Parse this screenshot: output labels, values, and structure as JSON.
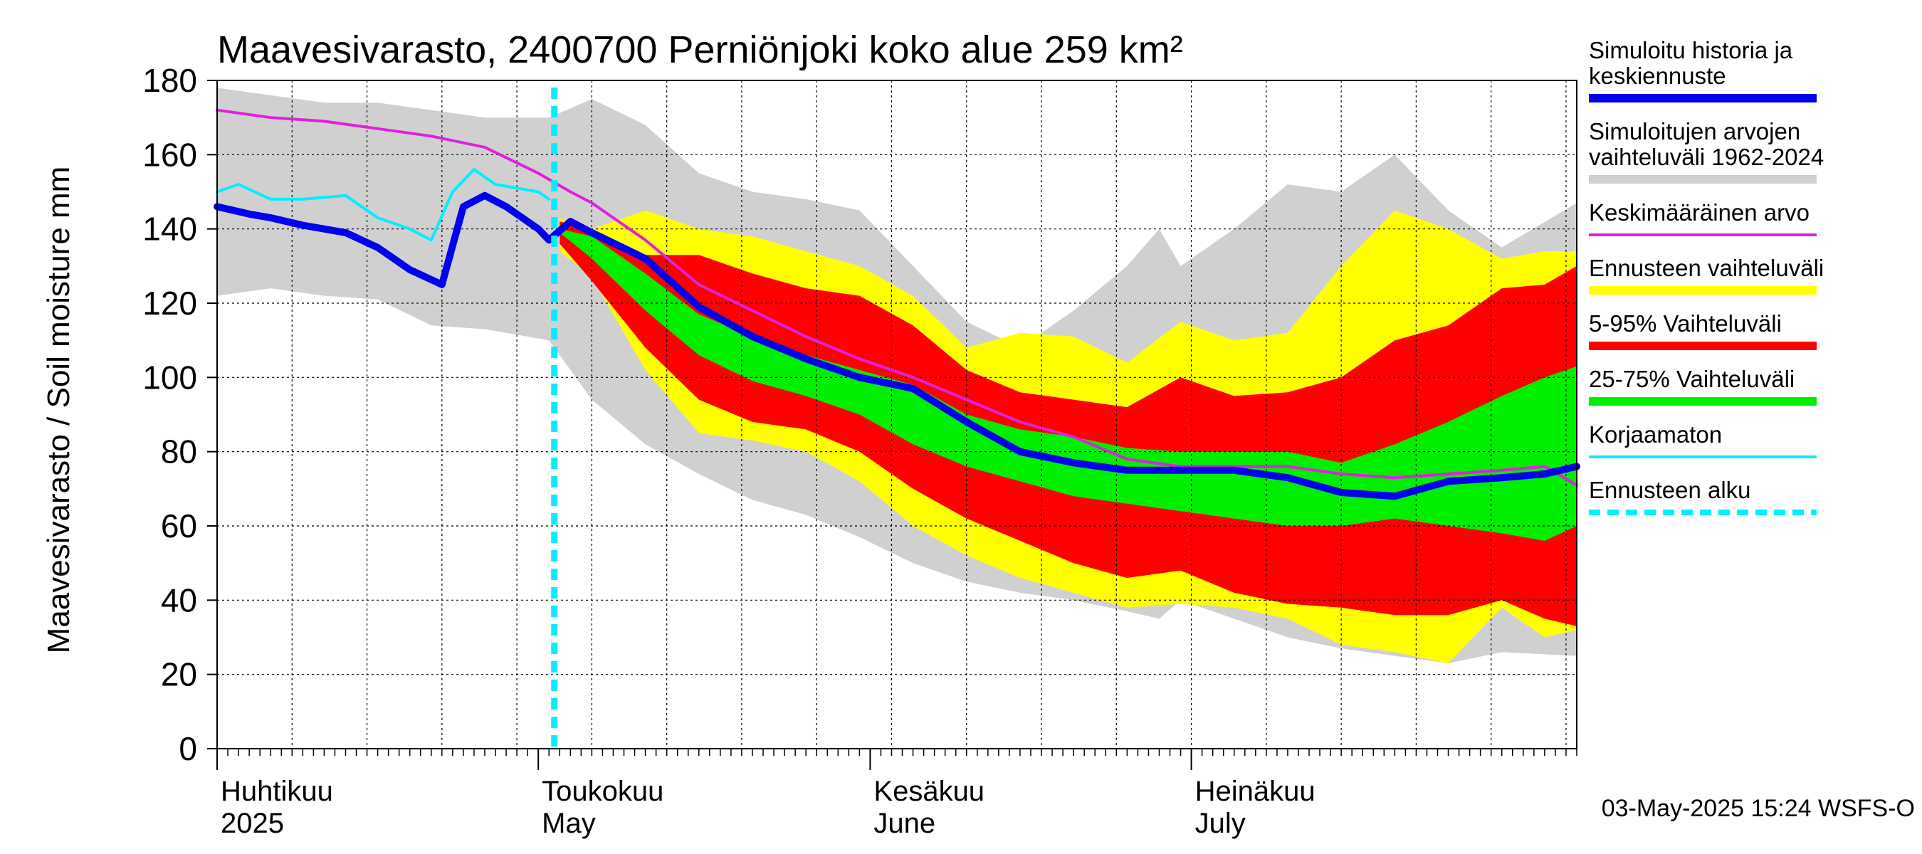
{
  "chart_data": {
    "type": "area",
    "title": "Maavesivarasto, 2400700 Perniönjoki koko alue 259 km²",
    "ylabel": "Maavesivarasto / Soil moisture   mm",
    "ylim": [
      0,
      180
    ],
    "yticks": [
      "0",
      "20",
      "40",
      "60",
      "80",
      "100",
      "120",
      "140",
      "160",
      "180"
    ],
    "x_range_days": [
      0,
      127
    ],
    "x_note": "x = days since 1 Apr 2025",
    "months": [
      {
        "fi": "Huhtikuu",
        "en": "2025",
        "day": 0
      },
      {
        "fi": "Toukokuu",
        "en": "May",
        "day": 30
      },
      {
        "fi": "Kesäkuu",
        "en": "June",
        "day": 61
      },
      {
        "fi": "Heinäkuu",
        "en": "July",
        "day": 91
      }
    ],
    "forecast_start_day": 31.5,
    "timestamp": "03-May-2025 15:24 WSFS-O",
    "legend": [
      {
        "label1": "Simuloitu historia ja",
        "label2": "keskiennuste",
        "color": "#0000ee",
        "style": "thick"
      },
      {
        "label1": "Simuloitujen arvojen",
        "label2": "vaihteluväli 1962-2024",
        "color": "#d0d0d0",
        "style": "thick"
      },
      {
        "label1": "Keskimääräinen arvo",
        "label2": "",
        "color": "#dd22dd",
        "style": "line"
      },
      {
        "label1": "Ennusteen vaihteluväli",
        "label2": "",
        "color": "#ffff00",
        "style": "thick"
      },
      {
        "label1": "5-95% Vaihteluväli",
        "label2": "",
        "color": "#ff0000",
        "style": "thick"
      },
      {
        "label1": "25-75% Vaihteluväli",
        "label2": "",
        "color": "#00ee00",
        "style": "thick"
      },
      {
        "label1": "Korjaamaton",
        "label2": "",
        "color": "#00eeff",
        "style": "line"
      },
      {
        "label1": "Ennusteen alku",
        "label2": "",
        "color": "#00eeff",
        "style": "dashed"
      }
    ],
    "bands": {
      "hist_range": {
        "color": "#d0d0d0",
        "x": [
          0,
          5,
          10,
          15,
          20,
          25,
          31,
          35,
          40,
          45,
          50,
          55,
          60,
          65,
          70,
          75,
          80,
          85,
          88,
          90,
          95,
          100,
          105,
          110,
          115,
          120,
          127
        ],
        "upper": [
          178,
          176,
          174,
          174,
          172,
          170,
          170,
          175,
          168,
          155,
          150,
          148,
          145,
          130,
          115,
          108,
          118,
          130,
          140,
          130,
          140,
          152,
          150,
          160,
          145,
          135,
          147
        ],
        "lower": [
          122,
          124,
          122,
          121,
          114,
          113,
          110,
          94,
          82,
          74,
          67,
          63,
          57,
          50,
          45,
          42,
          40,
          37,
          35,
          40,
          35,
          30,
          27,
          25,
          23,
          26,
          25
        ]
      },
      "forecast_range": {
        "color": "#ffff00",
        "x": [
          32,
          35,
          40,
          45,
          50,
          55,
          60,
          65,
          70,
          75,
          80,
          85,
          90,
          95,
          100,
          105,
          110,
          115,
          120,
          124,
          127
        ],
        "upper": [
          143,
          140,
          145,
          140,
          138,
          134,
          130,
          122,
          108,
          112,
          111,
          104,
          115,
          110,
          112,
          130,
          145,
          140,
          132,
          134,
          134
        ],
        "lower": [
          134,
          127,
          102,
          85,
          83,
          80,
          72,
          60,
          52,
          46,
          42,
          38,
          39,
          38,
          35,
          28,
          26,
          23,
          38,
          30,
          32
        ]
      },
      "p5_95": {
        "color": "#ff0000",
        "x": [
          32,
          35,
          40,
          45,
          50,
          55,
          60,
          65,
          70,
          75,
          80,
          85,
          90,
          95,
          100,
          105,
          110,
          115,
          120,
          124,
          127
        ],
        "upper": [
          142,
          140,
          133,
          133,
          128,
          124,
          122,
          114,
          102,
          96,
          94,
          92,
          100,
          95,
          96,
          100,
          110,
          114,
          124,
          125,
          130
        ],
        "lower": [
          136,
          126,
          108,
          94,
          88,
          86,
          80,
          70,
          62,
          56,
          50,
          46,
          48,
          42,
          39,
          38,
          36,
          36,
          40,
          35,
          33
        ]
      },
      "p25_75": {
        "color": "#00ee00",
        "x": [
          32,
          35,
          40,
          45,
          50,
          55,
          60,
          65,
          70,
          75,
          80,
          85,
          90,
          95,
          100,
          105,
          110,
          115,
          120,
          124,
          127
        ],
        "upper": [
          140,
          138,
          128,
          117,
          111,
          106,
          102,
          98,
          90,
          86,
          84,
          81,
          80,
          80,
          80,
          77,
          82,
          88,
          95,
          100,
          103
        ],
        "lower": [
          139,
          132,
          118,
          106,
          99,
          95,
          90,
          82,
          76,
          72,
          68,
          66,
          64,
          62,
          60,
          60,
          62,
          60,
          58,
          56,
          60
        ]
      }
    },
    "series": [
      {
        "name": "Simuloitu historia ja keskiennuste",
        "color": "#0000ee",
        "width": 10,
        "x": [
          0,
          3,
          5,
          8,
          12,
          15,
          18,
          21,
          23,
          25,
          27,
          28,
          30,
          31,
          33,
          35,
          40,
          45,
          50,
          55,
          60,
          65,
          70,
          75,
          80,
          85,
          90,
          95,
          100,
          105,
          110,
          115,
          120,
          124,
          127
        ],
        "y": [
          146,
          144,
          143,
          141,
          139,
          135,
          129,
          125,
          146,
          149,
          146,
          144,
          140,
          137,
          142,
          139,
          132,
          119,
          111,
          105,
          100,
          97,
          88,
          80,
          77,
          75,
          75,
          75,
          73,
          69,
          68,
          72,
          73,
          74,
          76
        ]
      },
      {
        "name": "Keskimääräinen arvo",
        "color": "#dd22dd",
        "width": 4,
        "x": [
          0,
          5,
          10,
          15,
          20,
          25,
          30,
          33,
          35,
          40,
          45,
          50,
          55,
          60,
          65,
          70,
          75,
          80,
          85,
          90,
          95,
          100,
          105,
          110,
          115,
          120,
          124,
          127
        ],
        "y": [
          172,
          170,
          169,
          167,
          165,
          162,
          155,
          150,
          147,
          137,
          125,
          118,
          111,
          105,
          100,
          94,
          88,
          84,
          78,
          76,
          76,
          76,
          74,
          73,
          74,
          75,
          76,
          71
        ]
      },
      {
        "name": "Korjaamaton",
        "color": "#00eeff",
        "width": 4,
        "x": [
          0,
          2,
          5,
          8,
          12,
          15,
          18,
          20,
          22,
          24,
          26,
          30,
          31
        ],
        "y": [
          150,
          152,
          148,
          148,
          149,
          143,
          140,
          137,
          150,
          156,
          152,
          150,
          148
        ]
      }
    ]
  }
}
